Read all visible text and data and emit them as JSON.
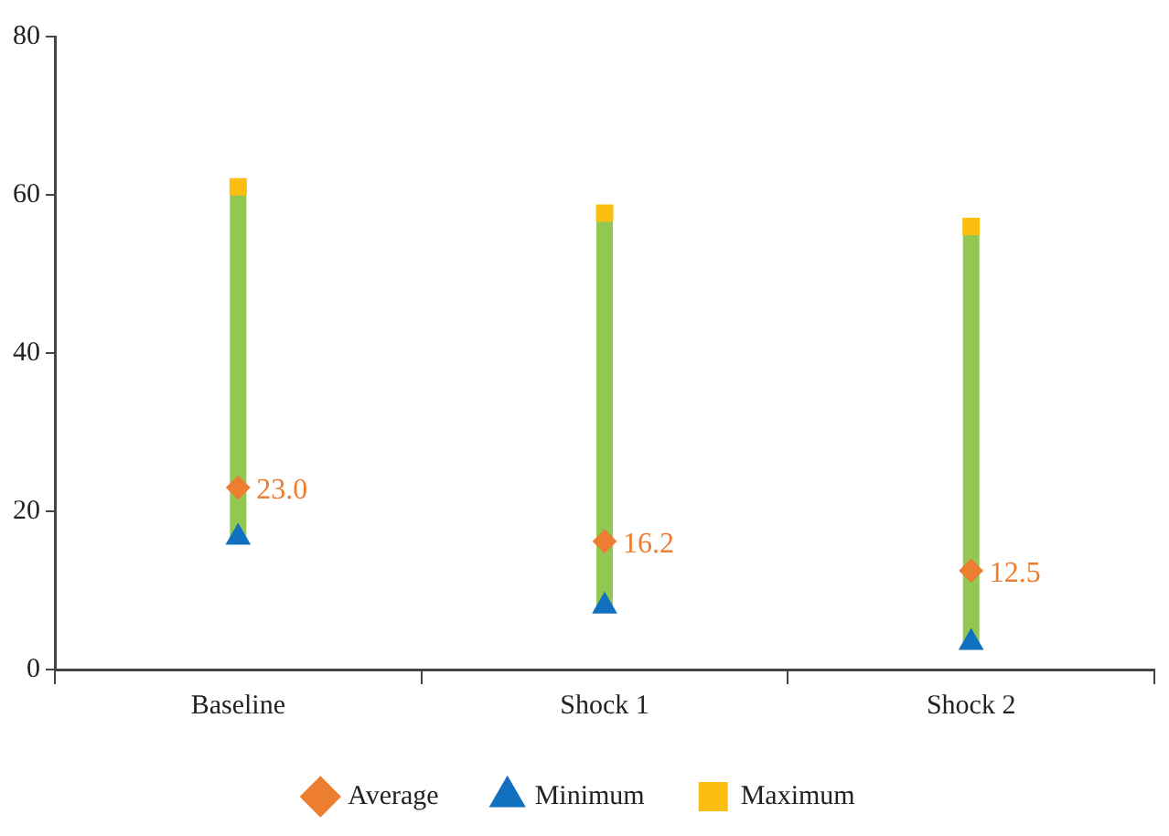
{
  "chart_data": {
    "type": "scatter",
    "categories": [
      "Baseline",
      "Shock 1",
      "Shock 2"
    ],
    "series": [
      {
        "name": "Average",
        "color": "#ed7d31",
        "marker": "diamond",
        "values": [
          23.0,
          16.2,
          12.5
        ],
        "value_labels": [
          "23.0",
          "16.2",
          "12.5"
        ]
      },
      {
        "name": "Minimum",
        "color": "#1170c0",
        "marker": "triangle",
        "values": [
          16.7,
          8.0,
          3.4
        ]
      },
      {
        "name": "Maximum",
        "color": "#fbbf12",
        "marker": "square",
        "values": [
          61.0,
          57.7,
          56.0
        ]
      }
    ],
    "ylim": [
      0,
      80
    ],
    "yticks": [
      0,
      20,
      40,
      60,
      80
    ],
    "grid": false,
    "legend": "bottom"
  }
}
